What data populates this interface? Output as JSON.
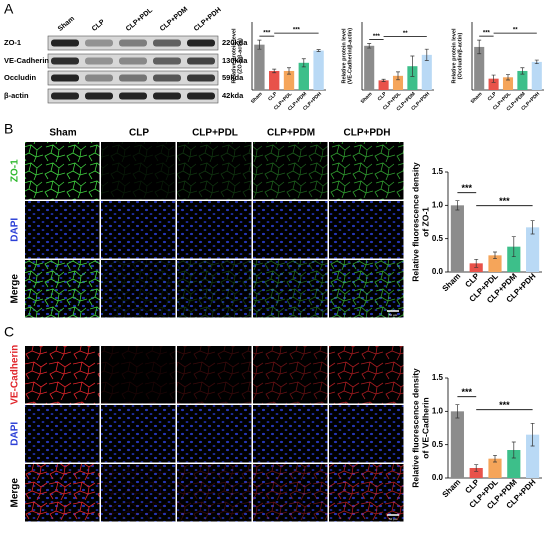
{
  "panels": {
    "letters": [
      "A",
      "B",
      "C"
    ],
    "blot": {
      "lanes": [
        "Sham",
        "CLP",
        "CLP+PDL",
        "CLP+PDM",
        "CLP+PDH"
      ],
      "proteins": [
        "ZO-1",
        "VE-Cadherin",
        "Occludin",
        "β-actin"
      ],
      "sizes": [
        "220kda",
        "130kda",
        "59kda",
        "42kda"
      ]
    },
    "image_columns": [
      "Sham",
      "CLP",
      "CLP+PDL",
      "CLP+PDM",
      "CLP+PDH"
    ],
    "rows_b": [
      "ZO-1",
      "DAPI",
      "Merge"
    ],
    "rows_c": [
      "VE-Cadherin",
      "DAPI",
      "Merge"
    ],
    "scale_bar": "50 μm"
  },
  "chart_data": [
    {
      "type": "bar",
      "ylabel": [
        "Relative protein level",
        "(ZO-1/β-actin)"
      ],
      "categories": [
        "Sham",
        "CLP",
        "CLP+PDL",
        "CLP+PDM",
        "CLP+PDH"
      ],
      "values": [
        1.0,
        0.42,
        0.42,
        0.6,
        0.87
      ],
      "errors": [
        0.1,
        0.04,
        0.07,
        0.09,
        0.02
      ],
      "colors": [
        "#8c8c8c",
        "#e8524a",
        "#f5a55a",
        "#3dbf8a",
        "#b9d9f5"
      ],
      "ylim": [
        0,
        1.5
      ],
      "annotations": [
        {
          "text": "***",
          "pair": [
            "Sham",
            "CLP"
          ]
        },
        {
          "text": "***",
          "pair": [
            "CLP",
            "CLP+PDH"
          ]
        }
      ]
    },
    {
      "type": "bar",
      "ylabel": [
        "Relative protein level",
        "(VE-Cadherin/β-actin)"
      ],
      "categories": [
        "Sham",
        "CLP",
        "CLP+PDL",
        "CLP+PDM",
        "CLP+PDH"
      ],
      "values": [
        0.78,
        0.17,
        0.25,
        0.42,
        0.62
      ],
      "errors": [
        0.04,
        0.02,
        0.07,
        0.18,
        0.1
      ],
      "colors": [
        "#8c8c8c",
        "#e8524a",
        "#f5a55a",
        "#3dbf8a",
        "#b9d9f5"
      ],
      "ylim": [
        0,
        1.2
      ],
      "annotations": [
        {
          "text": "***",
          "pair": [
            "Sham",
            "CLP"
          ]
        },
        {
          "text": "**",
          "pair": [
            "CLP",
            "CLP+PDH"
          ]
        }
      ]
    },
    {
      "type": "bar",
      "ylabel": [
        "Relative protein level",
        "(Occludin/β-actin)"
      ],
      "categories": [
        "Sham",
        "CLP",
        "CLP+PDL",
        "CLP+PDM",
        "CLP+PDH"
      ],
      "values": [
        0.95,
        0.25,
        0.28,
        0.42,
        0.62
      ],
      "errors": [
        0.15,
        0.08,
        0.06,
        0.07,
        0.04
      ],
      "colors": [
        "#8c8c8c",
        "#e8524a",
        "#f5a55a",
        "#3dbf8a",
        "#b9d9f5"
      ],
      "ylim": [
        0,
        1.5
      ],
      "annotations": [
        {
          "text": "***",
          "pair": [
            "Sham",
            "CLP"
          ]
        },
        {
          "text": "**",
          "pair": [
            "CLP",
            "CLP+PDH"
          ]
        }
      ]
    },
    {
      "type": "bar",
      "ylabel": [
        "Relative fluorescence density",
        "of ZO-1"
      ],
      "categories": [
        "Sham",
        "CLP",
        "CLP+PDL",
        "CLP+PDM",
        "CLP+PDH"
      ],
      "values": [
        1.0,
        0.13,
        0.25,
        0.38,
        0.67
      ],
      "errors": [
        0.07,
        0.06,
        0.05,
        0.15,
        0.1
      ],
      "colors": [
        "#8c8c8c",
        "#e8524a",
        "#f5a55a",
        "#3dbf8a",
        "#b9d9f5"
      ],
      "ylim": [
        0,
        1.5
      ],
      "yticks": [
        {
          "value": 0,
          "label": "0.0"
        },
        0.5,
        {
          "value": 1,
          "label": "1.0"
        },
        1.5
      ],
      "annotations": [
        {
          "text": "***",
          "pair": [
            "Sham",
            "CLP"
          ]
        },
        {
          "text": "***",
          "pair": [
            "CLP",
            "CLP+PDH"
          ]
        }
      ]
    },
    {
      "type": "bar",
      "ylabel": [
        "Relative fluorescence density",
        "of VE-Cadherin"
      ],
      "categories": [
        "Sham",
        "CLP",
        "CLP+PDL",
        "CLP+PDM",
        "CLP+PDH"
      ],
      "values": [
        1.0,
        0.15,
        0.29,
        0.42,
        0.65
      ],
      "errors": [
        0.1,
        0.05,
        0.05,
        0.12,
        0.17
      ],
      "colors": [
        "#8c8c8c",
        "#e8524a",
        "#f5a55a",
        "#3dbf8a",
        "#b9d9f5"
      ],
      "ylim": [
        0,
        1.5
      ],
      "yticks": [
        {
          "value": 0,
          "label": "0.0"
        },
        0.5,
        {
          "value": 1,
          "label": "1.0"
        },
        1.5
      ],
      "annotations": [
        {
          "text": "***",
          "pair": [
            "Sham",
            "CLP"
          ]
        },
        {
          "text": "***",
          "pair": [
            "CLP",
            "CLP+PDH"
          ]
        }
      ]
    }
  ]
}
